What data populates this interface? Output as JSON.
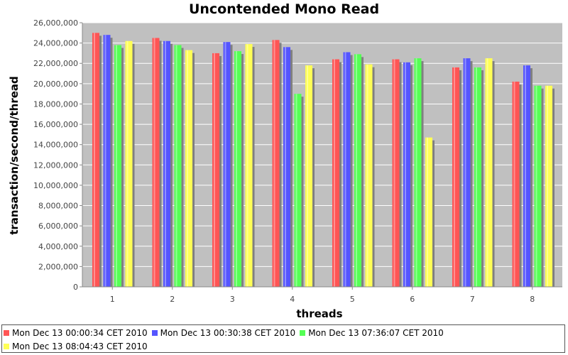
{
  "chart_data": {
    "type": "bar",
    "title": "Uncontended Mono Read",
    "xlabel": "threads",
    "ylabel": "transaction/second/thread",
    "ylim": [
      0,
      26000000
    ],
    "ytick_step": 2000000,
    "categories": [
      "1",
      "2",
      "3",
      "4",
      "5",
      "6",
      "7",
      "8"
    ],
    "legend_position": "bottom",
    "series": [
      {
        "name": "Mon Dec 13 00:00:34 CET 2010",
        "color": "#ff5555",
        "values": [
          25000000,
          24500000,
          23000000,
          24300000,
          22400000,
          22400000,
          21600000,
          20200000
        ]
      },
      {
        "name": "Mon Dec 13 00:30:38 CET 2010",
        "color": "#5555ff",
        "values": [
          24800000,
          24200000,
          24100000,
          23600000,
          23100000,
          22100000,
          22500000,
          21800000
        ]
      },
      {
        "name": "Mon Dec 13 07:36:07 CET 2010",
        "color": "#55ff55",
        "values": [
          23800000,
          23800000,
          23200000,
          19000000,
          22900000,
          22500000,
          21600000,
          19800000
        ]
      },
      {
        "name": "Mon Dec 13 08:04:43 CET 2010",
        "color": "#ffff55",
        "values": [
          24200000,
          23300000,
          23900000,
          21800000,
          21900000,
          14700000,
          22500000,
          19800000
        ]
      }
    ],
    "background_color": "#c0c0c0",
    "grid": true
  }
}
